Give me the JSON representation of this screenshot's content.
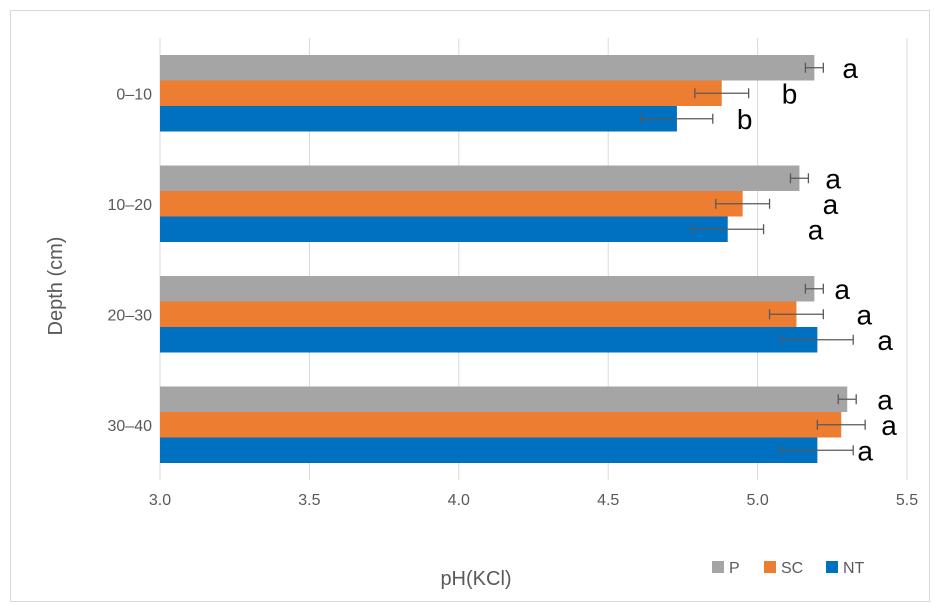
{
  "chart_data": {
    "type": "bar",
    "orientation": "horizontal",
    "title": "",
    "xlabel": "pH(KCl)",
    "ylabel": "Depth (cm)",
    "xlim": [
      3.0,
      5.5
    ],
    "xticks": [
      "3.0",
      "3.5",
      "4.0",
      "4.5",
      "5.0",
      "5.5"
    ],
    "categories": [
      "0–10",
      "10–20",
      "20–30",
      "30–40"
    ],
    "grid": true,
    "legend_position": "bottom-right",
    "series": [
      {
        "name": "P",
        "color": "#a5a5a5",
        "values": [
          5.19,
          5.14,
          5.19,
          5.3
        ],
        "errors": [
          0.03,
          0.03,
          0.03,
          0.03
        ],
        "letters": [
          "a",
          "a",
          "a",
          "a"
        ]
      },
      {
        "name": "SC",
        "color": "#ed7d31",
        "values": [
          4.88,
          4.95,
          5.13,
          5.28
        ],
        "errors": [
          0.09,
          0.09,
          0.09,
          0.08
        ],
        "letters": [
          "b",
          "a",
          "a",
          "a"
        ]
      },
      {
        "name": "NT",
        "color": "#0070c0",
        "values": [
          4.73,
          4.9,
          5.2,
          5.2
        ],
        "errors": [
          0.12,
          0.12,
          0.12,
          0.12
        ],
        "letters": [
          "b",
          "a",
          "a",
          "a"
        ]
      }
    ]
  }
}
